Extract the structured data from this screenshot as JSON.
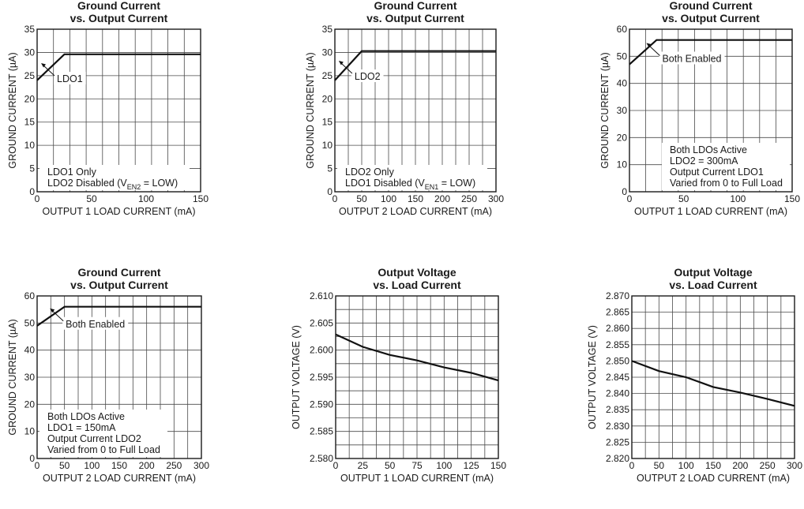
{
  "chart_data": [
    {
      "type": "line",
      "title": [
        "Ground Current",
        "vs. Output Current"
      ],
      "xlabel": "OUTPUT 1 LOAD CURRENT (mA)",
      "ylabel": "GROUND CURRENT (µA)",
      "xlim": [
        0,
        150
      ],
      "ylim": [
        0,
        35
      ],
      "xticks": [
        0,
        50,
        100,
        150
      ],
      "xgrid": 10,
      "yticks": [
        0,
        5,
        10,
        15,
        20,
        25,
        30,
        35
      ],
      "x": [
        0,
        25,
        150
      ],
      "y": [
        24,
        29.6,
        29.6
      ],
      "callout": {
        "text": "LDO1",
        "x": 8,
        "y": 26
      },
      "note": [
        {
          "t": "LDO1 Only"
        },
        {
          "t": "LDO2 Disabled (V",
          "sub": "EN2",
          "post": " = LOW)"
        }
      ],
      "note_corner": "bottom-left"
    },
    {
      "type": "line",
      "title": [
        "Ground Current",
        "vs. Output Current"
      ],
      "xlabel": "OUTPUT 2 LOAD CURRENT (mA)",
      "ylabel": "GROUND CURRENT (µA)",
      "xlim": [
        0,
        300
      ],
      "ylim": [
        0,
        35
      ],
      "xticks": [
        0,
        50,
        100,
        150,
        200,
        250,
        300
      ],
      "xgrid": 12,
      "yticks": [
        0,
        5,
        10,
        15,
        20,
        25,
        30,
        35
      ],
      "x": [
        0,
        50,
        300
      ],
      "y": [
        24,
        30.3,
        30.3
      ],
      "callout": {
        "text": "LDO2",
        "x": 16,
        "y": 26.5
      },
      "note": [
        {
          "t": "LDO2 Only"
        },
        {
          "t": "LDO1 Disabled (V",
          "sub": "EN1",
          "post": " = LOW)"
        }
      ],
      "note_corner": "bottom-left"
    },
    {
      "type": "line",
      "title": [
        "Ground Current",
        "vs. Output Current"
      ],
      "xlabel": "OUTPUT 1 LOAD CURRENT (mA)",
      "ylabel": "GROUND CURRENT (µA)",
      "xlim": [
        0,
        150
      ],
      "ylim": [
        0,
        60
      ],
      "xticks": [
        0,
        50,
        100,
        150
      ],
      "xgrid": 10,
      "yticks": [
        0,
        10,
        20,
        30,
        40,
        50,
        60
      ],
      "x": [
        0,
        25,
        150
      ],
      "y": [
        47,
        56,
        56
      ],
      "callout": {
        "text": "Both Enabled",
        "x": 20,
        "y": 52
      },
      "note": [
        {
          "t": "Both LDOs Active"
        },
        {
          "t": "LDO2 = 300mA"
        },
        {
          "t": "Output Current LDO1"
        },
        {
          "t": "Varied from 0 to Full Load"
        }
      ],
      "note_corner": "bottom-right"
    },
    {
      "type": "line",
      "title": [
        "Ground Current",
        "vs. Output Current"
      ],
      "xlabel": "OUTPUT 2 LOAD CURRENT (mA)",
      "ylabel": "GROUND CURRENT (µA)",
      "xlim": [
        0,
        300
      ],
      "ylim": [
        0,
        60
      ],
      "xticks": [
        0,
        50,
        100,
        150,
        200,
        250,
        300
      ],
      "xgrid": 12,
      "yticks": [
        0,
        10,
        20,
        30,
        40,
        50,
        60
      ],
      "x": [
        0,
        50,
        300
      ],
      "y": [
        49,
        56,
        56
      ],
      "callout": {
        "text": "Both Enabled",
        "x": 32,
        "y": 52.5
      },
      "note": [
        {
          "t": "Both LDOs Active"
        },
        {
          "t": "LDO1 = 150mA"
        },
        {
          "t": "Output Current LDO2"
        },
        {
          "t": "Varied from 0 to Full Load"
        }
      ],
      "note_corner": "bottom-left"
    },
    {
      "type": "line",
      "title": [
        "Output Voltage",
        "vs. Load Current"
      ],
      "xlabel": "OUTPUT 1 LOAD CURRENT (mA)",
      "ylabel": "OUTPUT VOLTAGE (V)",
      "xlim": [
        0,
        150
      ],
      "ylim": [
        2.58,
        2.61
      ],
      "xticks": [
        0,
        25,
        50,
        75,
        100,
        125,
        150
      ],
      "xgrid": 12,
      "yticks": [
        2.58,
        2.585,
        2.59,
        2.595,
        2.6,
        2.605,
        2.61
      ],
      "ydec": 3,
      "ygrid": 12,
      "x": [
        0,
        25,
        50,
        75,
        100,
        125,
        150
      ],
      "y": [
        2.6029,
        2.6006,
        2.5991,
        2.5981,
        2.5968,
        2.5958,
        2.5944
      ]
    },
    {
      "type": "line",
      "title": [
        "Output Voltage",
        "vs. Load Current"
      ],
      "xlabel": "OUTPUT 2 LOAD CURRENT (mA)",
      "ylabel": "OUTPUT VOLTAGE (V)",
      "xlim": [
        0,
        300
      ],
      "ylim": [
        2.82,
        2.87
      ],
      "xticks": [
        0,
        50,
        100,
        150,
        200,
        250,
        300
      ],
      "xgrid": 12,
      "yticks": [
        2.82,
        2.825,
        2.83,
        2.835,
        2.84,
        2.845,
        2.85,
        2.855,
        2.86,
        2.865,
        2.87
      ],
      "ydec": 3,
      "ygrid": 10,
      "x": [
        0,
        50,
        100,
        150,
        200,
        250,
        300
      ],
      "y": [
        2.85,
        2.8469,
        2.845,
        2.842,
        2.8403,
        2.8383,
        2.8362
      ]
    }
  ]
}
